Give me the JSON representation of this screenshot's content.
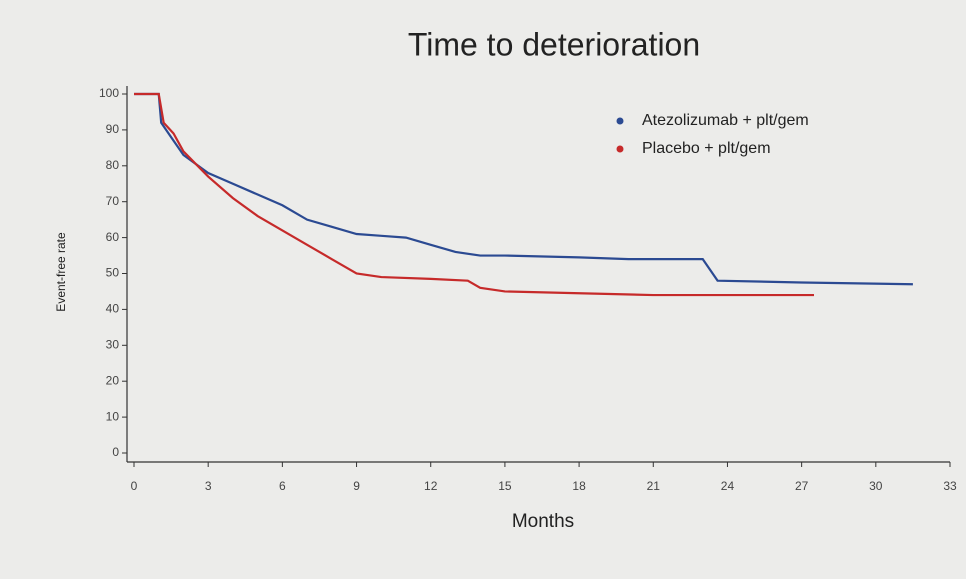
{
  "chart_data": {
    "type": "line",
    "title": "Time to deterioration",
    "x_label": "Months",
    "y_label": "Event-free rate",
    "xlim": [
      0,
      33
    ],
    "xticks": [
      0,
      3,
      6,
      9,
      12,
      15,
      18,
      21,
      24,
      27,
      30,
      33
    ],
    "ylim": [
      0,
      100
    ],
    "yticks": [
      0,
      10,
      20,
      30,
      40,
      50,
      60,
      70,
      80,
      90,
      100
    ],
    "legend": "top-right",
    "series": [
      {
        "name": "Atezolizumab + plt/gem",
        "color": "#2b4a92",
        "x": [
          0,
          1,
          1.1,
          1.5,
          2,
          3,
          4,
          5,
          6,
          7,
          8,
          9,
          10,
          11,
          12,
          13,
          14,
          15,
          18,
          20,
          23,
          23.3,
          23.6,
          27,
          31.5
        ],
        "values": [
          100,
          100,
          92,
          88,
          83,
          78,
          75,
          72,
          69,
          65,
          63,
          61,
          60.5,
          60,
          58,
          56,
          55,
          55,
          54.5,
          54,
          54,
          51,
          48,
          47.5,
          47
        ]
      },
      {
        "name": "Placebo + plt/gem",
        "color": "#c62a2a",
        "x": [
          0,
          1,
          1.2,
          1.6,
          2,
          3,
          4,
          5,
          6,
          7,
          8,
          9,
          10,
          12,
          13.5,
          14,
          15,
          18,
          21,
          25,
          27.5
        ],
        "values": [
          100,
          100,
          92,
          89,
          84,
          77,
          71,
          66,
          62,
          58,
          54,
          50,
          49,
          48.5,
          48,
          46,
          45,
          44.5,
          44,
          44,
          44
        ]
      }
    ]
  }
}
